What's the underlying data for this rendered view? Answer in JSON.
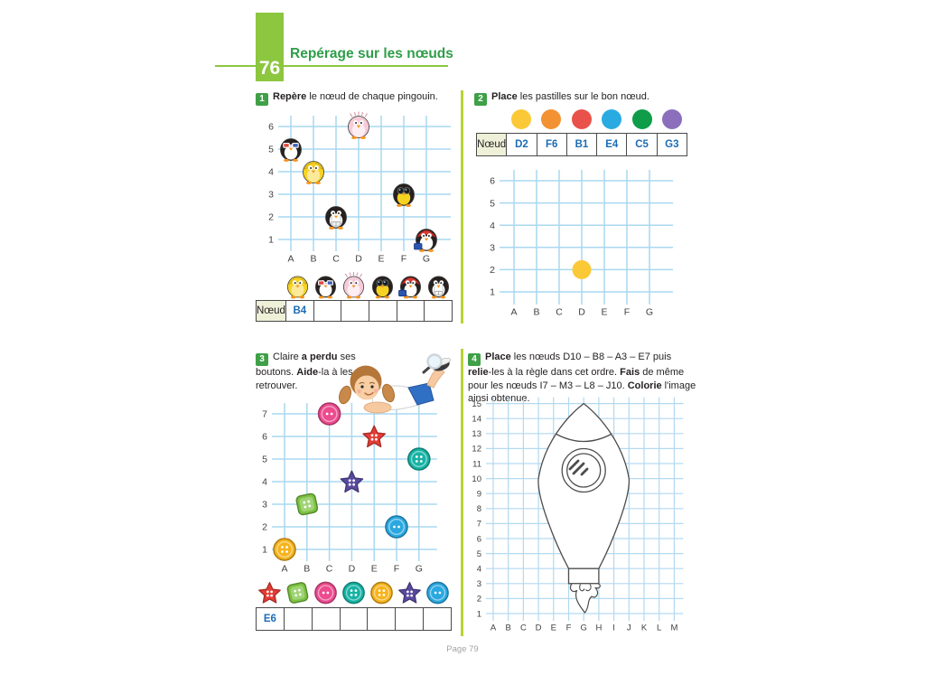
{
  "header": {
    "lesson_number": "76",
    "title": "Repérage sur les nœuds"
  },
  "footer": {
    "page_label": "Page 79"
  },
  "colors": {
    "accent_green": "#8dc63f",
    "badge_green": "#3fa047",
    "title_green": "#2e9e49",
    "divider_green": "#b7d433",
    "grid_blue": "#a9d8f0",
    "answer_blue": "#1b6cb5",
    "table_header_bg": "#eef0d8",
    "rocket_outline": "#4d4d4d"
  },
  "ex1": {
    "badge": "1",
    "instruction": [
      {
        "t": "Repère",
        "b": true
      },
      {
        "t": " le nœud de chaque pingouin.",
        "b": false
      }
    ],
    "grid": {
      "cols": [
        "A",
        "B",
        "C",
        "D",
        "E",
        "F",
        "G"
      ],
      "rows": [
        "1",
        "2",
        "3",
        "4",
        "5",
        "6"
      ]
    },
    "penguins": [
      {
        "icon": "penguin-raincoat",
        "col": "B",
        "row": 4
      },
      {
        "icon": "penguin-3dglasses",
        "col": "A",
        "row": 5
      },
      {
        "icon": "penguin-pink",
        "col": "D",
        "row": 6
      },
      {
        "icon": "penguin-binoculars",
        "col": "F",
        "row": 3
      },
      {
        "icon": "penguin-redhood",
        "col": "G",
        "row": 1
      },
      {
        "icon": "penguin-reader",
        "col": "C",
        "row": 2
      }
    ],
    "icon_row": [
      "penguin-raincoat",
      "penguin-3dglasses",
      "penguin-pink",
      "penguin-binoculars",
      "penguin-redhood",
      "penguin-reader"
    ],
    "table": {
      "header": "Nœud",
      "cells": [
        "B4",
        "",
        "",
        "",
        "",
        ""
      ]
    }
  },
  "ex2": {
    "badge": "2",
    "instruction": [
      {
        "t": "Place",
        "b": true
      },
      {
        "t": " les pastilles sur le bon nœud.",
        "b": false
      }
    ],
    "pastilles": [
      "#fbc937",
      "#f29233",
      "#e8524b",
      "#29abe2",
      "#0f9d49",
      "#8b6fbc"
    ],
    "table": {
      "header": "Nœud",
      "cells": [
        "D2",
        "F6",
        "B1",
        "E4",
        "C5",
        "G3"
      ]
    },
    "grid": {
      "cols": [
        "A",
        "B",
        "C",
        "D",
        "E",
        "F",
        "G"
      ],
      "rows": [
        "1",
        "2",
        "3",
        "4",
        "5",
        "6"
      ]
    },
    "placed_dots": [
      {
        "color": "#fbc937",
        "col": "D",
        "row": 2
      }
    ]
  },
  "ex3": {
    "badge": "3",
    "instruction": [
      {
        "t": "Claire ",
        "b": false
      },
      {
        "t": "a perdu",
        "b": true
      },
      {
        "t": " ses boutons. ",
        "b": false
      },
      {
        "t": "Aide",
        "b": true
      },
      {
        "t": "-la à les retrouver.",
        "b": false
      }
    ],
    "grid": {
      "cols": [
        "A",
        "B",
        "C",
        "D",
        "E",
        "F",
        "G"
      ],
      "rows": [
        "1",
        "2",
        "3",
        "4",
        "5",
        "6",
        "7"
      ]
    },
    "buttons": [
      {
        "icon": "button-round",
        "color": "#ec4b8e",
        "holes": 2,
        "col": "C",
        "row": 7
      },
      {
        "icon": "button-star",
        "color": "#e53c35",
        "holes": 4,
        "col": "E",
        "row": 6
      },
      {
        "icon": "button-round",
        "color": "#17b3a4",
        "holes": 4,
        "col": "G",
        "row": 5
      },
      {
        "icon": "button-star",
        "color": "#5a4a9f",
        "holes": 4,
        "col": "D",
        "row": 4
      },
      {
        "icon": "button-square",
        "color": "#7cc242",
        "holes": 4,
        "col": "B",
        "row": 3
      },
      {
        "icon": "button-round",
        "color": "#2ba8e0",
        "holes": 2,
        "col": "F",
        "row": 2
      },
      {
        "icon": "button-round",
        "color": "#f6b31c",
        "holes": 4,
        "col": "A",
        "row": 1
      }
    ],
    "icon_row": [
      {
        "icon": "button-star",
        "color": "#e53c35",
        "holes": 4
      },
      {
        "icon": "button-square",
        "color": "#7cc242",
        "holes": 4
      },
      {
        "icon": "button-round",
        "color": "#ec4b8e",
        "holes": 2
      },
      {
        "icon": "button-round",
        "color": "#17b3a4",
        "holes": 4
      },
      {
        "icon": "button-round",
        "color": "#f6b31c",
        "holes": 4
      },
      {
        "icon": "button-star",
        "color": "#5a4a9f",
        "holes": 4
      },
      {
        "icon": "button-round",
        "color": "#2ba8e0",
        "holes": 2
      }
    ],
    "table": {
      "cells": [
        "E6",
        "",
        "",
        "",
        "",
        "",
        ""
      ]
    }
  },
  "ex4": {
    "badge": "4",
    "instruction": [
      {
        "t": "Place",
        "b": true
      },
      {
        "t": " les nœuds D10 – B8 – A3 – E7 puis ",
        "b": false
      },
      {
        "t": "relie",
        "b": true
      },
      {
        "t": "-les à la règle dans cet ordre. ",
        "b": false
      },
      {
        "t": "Fais",
        "b": true
      },
      {
        "t": " de même pour les nœuds I7 – M3 – L8 – J10. ",
        "b": false
      },
      {
        "t": "Colorie",
        "b": true
      },
      {
        "t": " l'image ainsi obtenue.",
        "b": false
      }
    ],
    "grid": {
      "cols": [
        "A",
        "B",
        "C",
        "D",
        "E",
        "F",
        "G",
        "H",
        "I",
        "J",
        "K",
        "L",
        "M"
      ],
      "rows": [
        "1",
        "2",
        "3",
        "4",
        "5",
        "6",
        "7",
        "8",
        "9",
        "10",
        "11",
        "12",
        "13",
        "14",
        "15"
      ]
    }
  }
}
